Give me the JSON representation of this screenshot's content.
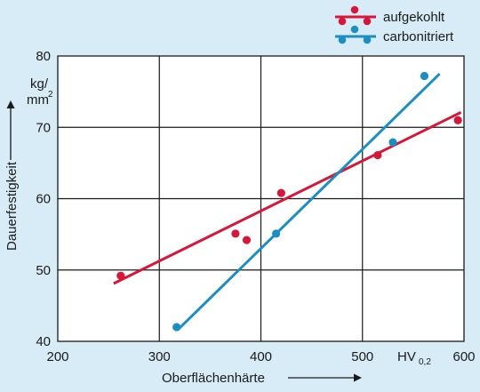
{
  "chart_data": {
    "type": "scatter",
    "xlabel": "Oberflächenhärte",
    "ylabel": "Dauerfestigkeit",
    "x_unit_main": "HV",
    "x_unit_sub": "0,2",
    "y_unit_top": "kg/",
    "y_unit_bottom": "mm",
    "y_unit_exp": "2",
    "xlim": [
      200,
      600
    ],
    "ylim": [
      40,
      80
    ],
    "xticks": [
      "200",
      "300",
      "400",
      "500",
      "600"
    ],
    "yticks": [
      "40",
      "50",
      "60",
      "70",
      "80"
    ],
    "grid": true,
    "legend_position": "top-right",
    "series": [
      {
        "name": "aufgekohlt",
        "color": "#d6173a",
        "points": [
          {
            "x": 262,
            "y": 49.2
          },
          {
            "x": 375,
            "y": 55.1
          },
          {
            "x": 386,
            "y": 54.2
          },
          {
            "x": 420,
            "y": 60.8
          },
          {
            "x": 515,
            "y": 66.1
          },
          {
            "x": 594,
            "y": 71.0
          }
        ],
        "fit": [
          {
            "x": 255,
            "y": 48.1
          },
          {
            "x": 597,
            "y": 72.1
          }
        ]
      },
      {
        "name": "carbonitriert",
        "color": "#1b8fc2",
        "points": [
          {
            "x": 317,
            "y": 42.0
          },
          {
            "x": 415,
            "y": 55.1
          },
          {
            "x": 530,
            "y": 67.9
          },
          {
            "x": 561,
            "y": 77.2
          }
        ],
        "fit": [
          {
            "x": 318,
            "y": 41.6
          },
          {
            "x": 576,
            "y": 77.5
          }
        ]
      }
    ]
  }
}
